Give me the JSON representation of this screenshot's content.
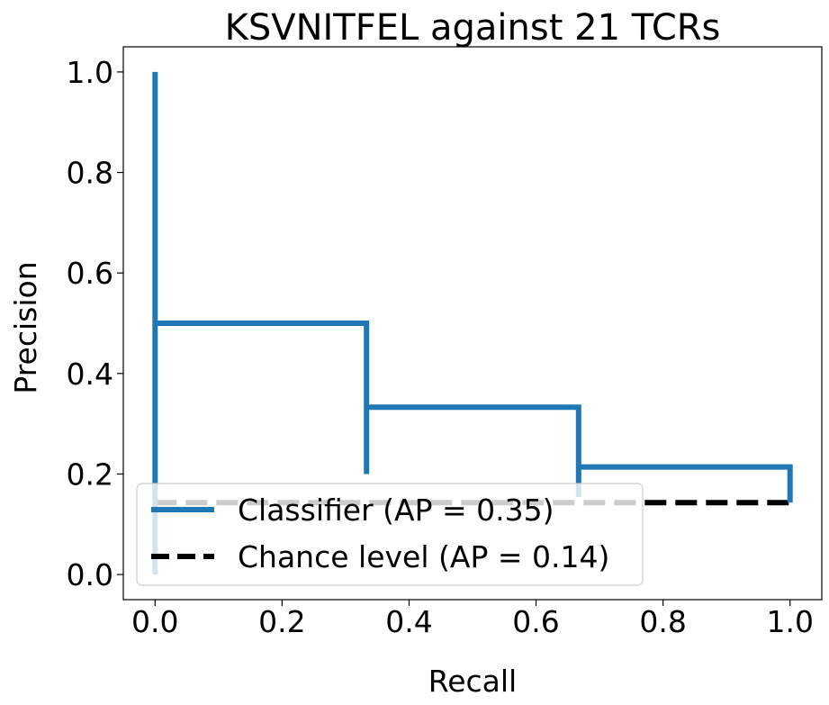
{
  "chart_data": {
    "type": "line",
    "title": "KSVNITFEL against 21 TCRs",
    "xlabel": "Recall",
    "ylabel": "Precision",
    "xlim": [
      -0.05,
      1.05
    ],
    "ylim": [
      -0.05,
      1.05
    ],
    "xticks": [
      "0.0",
      "0.2",
      "0.4",
      "0.6",
      "0.8",
      "1.0"
    ],
    "yticks": [
      "0.0",
      "0.2",
      "0.4",
      "0.6",
      "0.8",
      "1.0"
    ],
    "grid": false,
    "legend_position": "lower-left",
    "series": [
      {
        "name": "Classifier (AP = 0.35)",
        "style": "solid",
        "color": "#1f77b4",
        "x": [
          0.0,
          0.0,
          0.0,
          0.0,
          0.333,
          0.333,
          0.333,
          0.667,
          0.667,
          0.667,
          1.0,
          1.0
        ],
        "y": [
          1.0,
          0.143,
          0.0,
          0.5,
          0.5,
          0.2,
          0.333,
          0.333,
          0.154,
          0.214,
          0.214,
          0.143
        ]
      },
      {
        "name": "Chance level (AP = 0.14)",
        "style": "dashed",
        "color": "#000000",
        "x": [
          0.0,
          1.0
        ],
        "y": [
          0.143,
          0.143
        ]
      }
    ]
  }
}
